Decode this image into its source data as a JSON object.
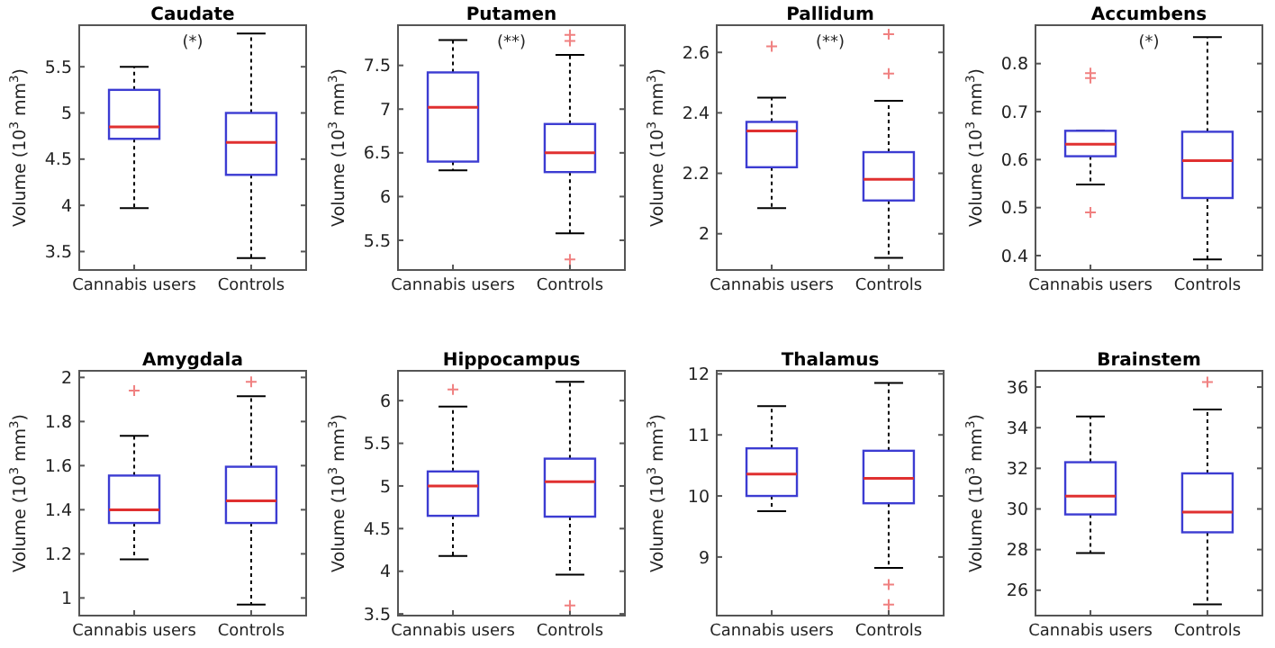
{
  "chart_data": [
    {
      "type": "box",
      "title": "Caudate",
      "ylabel": "Volume (10$^{3}$ mm$^{3}$)",
      "categories": [
        "Cannabis users",
        "Controls"
      ],
      "annotations": [
        "(*)"
      ],
      "ylim": [
        3.3,
        5.95
      ],
      "yticks": [
        3.5,
        4,
        4.5,
        5,
        5.5
      ],
      "grid": false,
      "series": [
        {
          "color": "#3c3cd2",
          "boxes": [
            {
              "low": 3.97,
              "q1": 4.72,
              "median": 4.85,
              "q3": 5.25,
              "high": 5.5
            },
            {
              "low": 3.43,
              "q1": 4.33,
              "median": 4.68,
              "q3": 5.0,
              "high": 5.86
            }
          ]
        }
      ]
    },
    {
      "type": "box",
      "title": "Putamen",
      "ylabel": "Volume (10$^{3}$ mm$^{3}$)",
      "categories": [
        "Cannabis users",
        "Controls"
      ],
      "annotations": [
        "(**)"
      ],
      "ylim": [
        5.16,
        7.96
      ],
      "yticks": [
        5.5,
        6,
        6.5,
        7,
        7.5
      ],
      "grid": false,
      "series": [
        {
          "color": "#3c3cd2",
          "boxes": [
            {
              "low": 6.3,
              "q1": 6.4,
              "median": 7.02,
              "q3": 7.42,
              "high": 7.79
            },
            {
              "low": 5.58,
              "q1": 6.28,
              "median": 6.5,
              "q3": 6.83,
              "high": 7.62,
              "outliers": [
                7.78,
                7.85,
                5.28
              ]
            }
          ]
        }
      ]
    },
    {
      "type": "box",
      "title": "Pallidum",
      "ylabel": "Volume (10$^{3}$ mm$^{3}$)",
      "categories": [
        "Cannabis users",
        "Controls"
      ],
      "annotations": [
        "(**)"
      ],
      "ylim": [
        1.88,
        2.69
      ],
      "yticks": [
        2,
        2.2,
        2.4,
        2.6
      ],
      "grid": false,
      "series": [
        {
          "color": "#3c3cd2",
          "boxes": [
            {
              "low": 2.085,
              "q1": 2.22,
              "median": 2.34,
              "q3": 2.37,
              "high": 2.45,
              "outliers": [
                2.62
              ]
            },
            {
              "low": 1.92,
              "q1": 2.11,
              "median": 2.18,
              "q3": 2.27,
              "high": 2.44,
              "outliers": [
                2.53,
                2.66
              ]
            }
          ]
        }
      ]
    },
    {
      "type": "box",
      "title": "Accumbens",
      "ylabel": "Volume (10$^{3}$ mm$^{3}$)",
      "categories": [
        "Cannabis users",
        "Controls"
      ],
      "annotations": [
        "(*)"
      ],
      "ylim": [
        0.37,
        0.88
      ],
      "yticks": [
        0.4,
        0.5,
        0.6,
        0.7,
        0.8
      ],
      "grid": false,
      "series": [
        {
          "color": "#3c3cd2",
          "boxes": [
            {
              "low": 0.548,
              "q1": 0.607,
              "median": 0.632,
              "q3": 0.66,
              "high": 0.66,
              "outliers": [
                0.77,
                0.78,
                0.49
              ]
            },
            {
              "low": 0.392,
              "q1": 0.52,
              "median": 0.598,
              "q3": 0.658,
              "high": 0.855
            }
          ]
        }
      ]
    },
    {
      "type": "box",
      "title": "Amygdala",
      "ylabel": "Volume (10$^{3}$ mm$^{3}$)",
      "categories": [
        "Cannabis users",
        "Controls"
      ],
      "ylim": [
        0.92,
        2.03
      ],
      "yticks": [
        1,
        1.2,
        1.4,
        1.6,
        1.8,
        2
      ],
      "grid": false,
      "series": [
        {
          "color": "#3c3cd2",
          "boxes": [
            {
              "low": 1.175,
              "q1": 1.34,
              "median": 1.4,
              "q3": 1.555,
              "high": 1.735,
              "outliers": [
                1.94
              ]
            },
            {
              "low": 0.97,
              "q1": 1.34,
              "median": 1.44,
              "q3": 1.595,
              "high": 1.915,
              "outliers": [
                1.98
              ]
            }
          ]
        }
      ]
    },
    {
      "type": "box",
      "title": "Hippocampus",
      "ylabel": "Volume (10$^{3}$ mm$^{3}$)",
      "categories": [
        "Cannabis users",
        "Controls"
      ],
      "ylim": [
        3.48,
        6.35
      ],
      "yticks": [
        3.5,
        4,
        4.5,
        5,
        5.5,
        6
      ],
      "grid": false,
      "series": [
        {
          "color": "#3c3cd2",
          "boxes": [
            {
              "low": 4.18,
              "q1": 4.65,
              "median": 5.0,
              "q3": 5.17,
              "high": 5.93,
              "outliers": [
                6.13
              ]
            },
            {
              "low": 3.96,
              "q1": 4.64,
              "median": 5.05,
              "q3": 5.32,
              "high": 6.22,
              "outliers": [
                3.6
              ]
            }
          ]
        }
      ]
    },
    {
      "type": "box",
      "title": "Thalamus",
      "ylabel": "Volume (10$^{3}$ mm$^{3}$)",
      "categories": [
        "Cannabis users",
        "Controls"
      ],
      "ylim": [
        8.04,
        12.05
      ],
      "yticks": [
        9,
        10,
        11,
        12
      ],
      "grid": false,
      "series": [
        {
          "color": "#3c3cd2",
          "boxes": [
            {
              "low": 9.75,
              "q1": 10.0,
              "median": 10.36,
              "q3": 10.78,
              "high": 11.47
            },
            {
              "low": 8.82,
              "q1": 9.88,
              "median": 10.29,
              "q3": 10.74,
              "high": 11.85,
              "outliers": [
                8.55,
                8.22
              ]
            }
          ]
        }
      ]
    },
    {
      "type": "box",
      "title": "Brainstem",
      "ylabel": "Volume (10$^{3}$ mm$^{3}$)",
      "categories": [
        "Cannabis users",
        "Controls"
      ],
      "ylim": [
        24.75,
        36.8
      ],
      "yticks": [
        26,
        28,
        30,
        32,
        34,
        36
      ],
      "grid": false,
      "series": [
        {
          "color": "#3c3cd2",
          "boxes": [
            {
              "low": 27.83,
              "q1": 29.73,
              "median": 30.63,
              "q3": 32.3,
              "high": 34.55
            },
            {
              "low": 25.3,
              "q1": 28.85,
              "median": 29.85,
              "q3": 31.75,
              "high": 34.9,
              "outliers": [
                36.25
              ]
            }
          ]
        }
      ]
    }
  ]
}
